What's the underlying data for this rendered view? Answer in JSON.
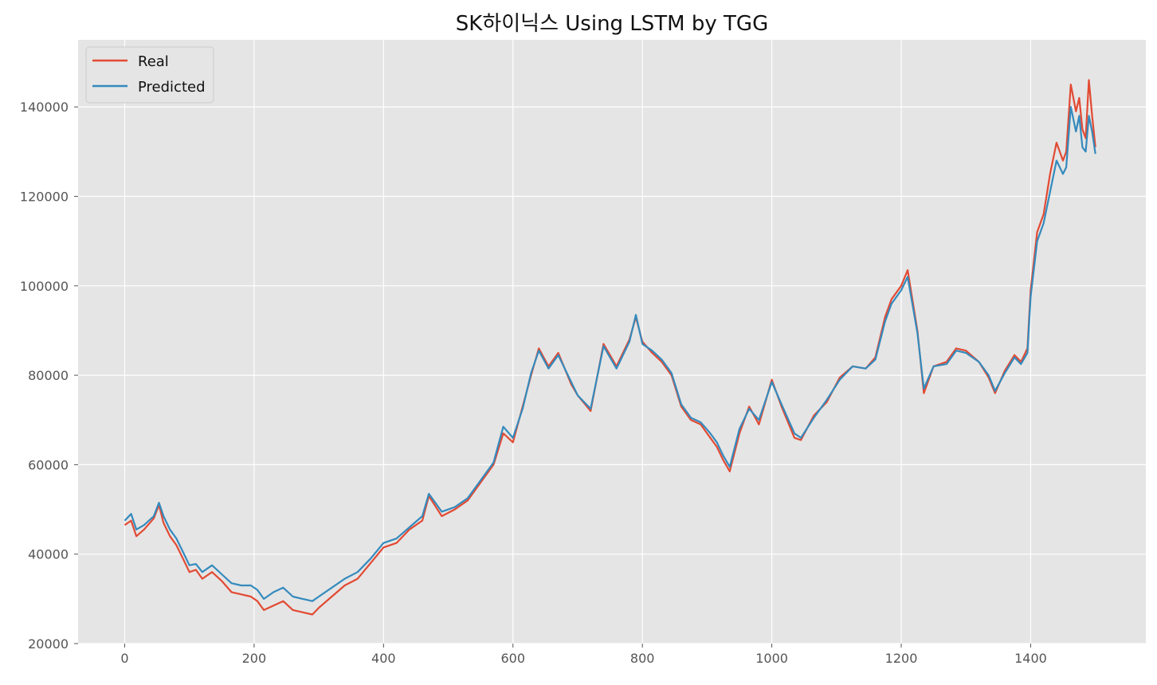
{
  "chart_data": {
    "type": "line",
    "title": "SK하이닉스 Using LSTM by TGG",
    "xlabel": "",
    "ylabel": "",
    "xlim": [
      -72,
      1578
    ],
    "ylim": [
      20000,
      155000
    ],
    "x_ticks": [
      0,
      200,
      400,
      600,
      800,
      1000,
      1200,
      1400
    ],
    "y_ticks": [
      20000,
      40000,
      60000,
      80000,
      100000,
      120000,
      140000
    ],
    "grid": true,
    "legend_position": "top-left",
    "background": "#E5E5E5",
    "series": [
      {
        "name": "Real",
        "color": "#E24A33",
        "x": [
          0,
          10,
          18,
          30,
          45,
          53,
          60,
          70,
          80,
          90,
          100,
          110,
          120,
          135,
          150,
          165,
          180,
          195,
          205,
          215,
          230,
          245,
          260,
          275,
          290,
          300,
          320,
          340,
          360,
          380,
          400,
          420,
          440,
          460,
          470,
          490,
          510,
          530,
          550,
          570,
          585,
          600,
          615,
          628,
          640,
          655,
          670,
          690,
          700,
          720,
          740,
          760,
          780,
          790,
          800,
          815,
          830,
          845,
          860,
          875,
          890,
          905,
          915,
          925,
          935,
          950,
          965,
          980,
          1000,
          1015,
          1035,
          1045,
          1065,
          1085,
          1105,
          1125,
          1145,
          1160,
          1175,
          1185,
          1200,
          1210,
          1225,
          1235,
          1250,
          1270,
          1285,
          1300,
          1320,
          1335,
          1345,
          1360,
          1375,
          1385,
          1395,
          1400,
          1410,
          1420,
          1430,
          1440,
          1450,
          1455,
          1462,
          1470,
          1475,
          1480,
          1485,
          1490,
          1495,
          1500
        ],
        "values": [
          46500,
          47500,
          44000,
          45500,
          48000,
          51000,
          47000,
          44000,
          42000,
          39000,
          36000,
          36500,
          34500,
          36000,
          34000,
          31500,
          31000,
          30500,
          29500,
          27500,
          28500,
          29500,
          27500,
          27000,
          26500,
          28000,
          30500,
          33000,
          34500,
          38000,
          41500,
          42500,
          45500,
          47500,
          53000,
          48500,
          50000,
          52000,
          56000,
          60000,
          67000,
          65000,
          73000,
          80000,
          86000,
          82000,
          85000,
          78000,
          75500,
          72000,
          87000,
          82000,
          88000,
          93000,
          87500,
          85000,
          83000,
          80000,
          73000,
          70000,
          69000,
          66000,
          64000,
          61000,
          58500,
          67000,
          73000,
          69000,
          79000,
          73000,
          66000,
          65500,
          71000,
          74000,
          79500,
          82000,
          81500,
          84000,
          93000,
          97000,
          100000,
          103500,
          90000,
          76000,
          82000,
          83000,
          86000,
          85500,
          83000,
          79500,
          76000,
          81000,
          84500,
          83000,
          86000,
          99000,
          112000,
          116000,
          125000,
          132000,
          128000,
          130000,
          145000,
          139000,
          142000,
          135000,
          133000,
          146000,
          138000,
          131000
        ]
      },
      {
        "name": "Predicted",
        "color": "#348ABD",
        "x": [
          0,
          10,
          18,
          30,
          45,
          53,
          60,
          70,
          80,
          90,
          100,
          110,
          120,
          135,
          150,
          165,
          180,
          195,
          205,
          215,
          230,
          245,
          260,
          275,
          290,
          300,
          320,
          340,
          360,
          380,
          400,
          420,
          440,
          460,
          470,
          490,
          510,
          530,
          550,
          570,
          585,
          600,
          615,
          628,
          640,
          655,
          670,
          690,
          700,
          720,
          740,
          760,
          780,
          790,
          800,
          815,
          830,
          845,
          860,
          875,
          890,
          905,
          915,
          925,
          935,
          950,
          965,
          980,
          1000,
          1015,
          1035,
          1045,
          1065,
          1085,
          1105,
          1125,
          1145,
          1160,
          1175,
          1185,
          1200,
          1210,
          1225,
          1235,
          1250,
          1270,
          1285,
          1300,
          1320,
          1335,
          1345,
          1360,
          1375,
          1385,
          1395,
          1400,
          1410,
          1420,
          1430,
          1440,
          1450,
          1455,
          1462,
          1470,
          1475,
          1480,
          1485,
          1490,
          1495,
          1500
        ],
        "values": [
          47500,
          49000,
          45500,
          46500,
          48500,
          51500,
          48500,
          45500,
          43500,
          40500,
          37500,
          37800,
          36000,
          37500,
          35500,
          33500,
          33000,
          33000,
          32000,
          30000,
          31500,
          32500,
          30500,
          30000,
          29500,
          30500,
          32500,
          34500,
          36000,
          39000,
          42500,
          43500,
          46000,
          48500,
          53500,
          49500,
          50500,
          52500,
          56500,
          60500,
          68500,
          66000,
          72500,
          80500,
          85500,
          81500,
          84500,
          78500,
          75500,
          72500,
          86500,
          81500,
          87500,
          93500,
          87000,
          85500,
          83500,
          80500,
          73500,
          70500,
          69500,
          67000,
          65000,
          62000,
          59500,
          68000,
          72500,
          70000,
          78500,
          73500,
          67000,
          66000,
          70500,
          74500,
          79000,
          82000,
          81500,
          83500,
          92000,
          96000,
          99000,
          102000,
          89500,
          77000,
          82000,
          82500,
          85500,
          85000,
          83000,
          80000,
          76500,
          80500,
          84000,
          82500,
          85000,
          97500,
          110000,
          114000,
          121000,
          128000,
          125000,
          126500,
          140000,
          134500,
          138000,
          131000,
          130000,
          138000,
          134500,
          129500
        ]
      }
    ]
  }
}
